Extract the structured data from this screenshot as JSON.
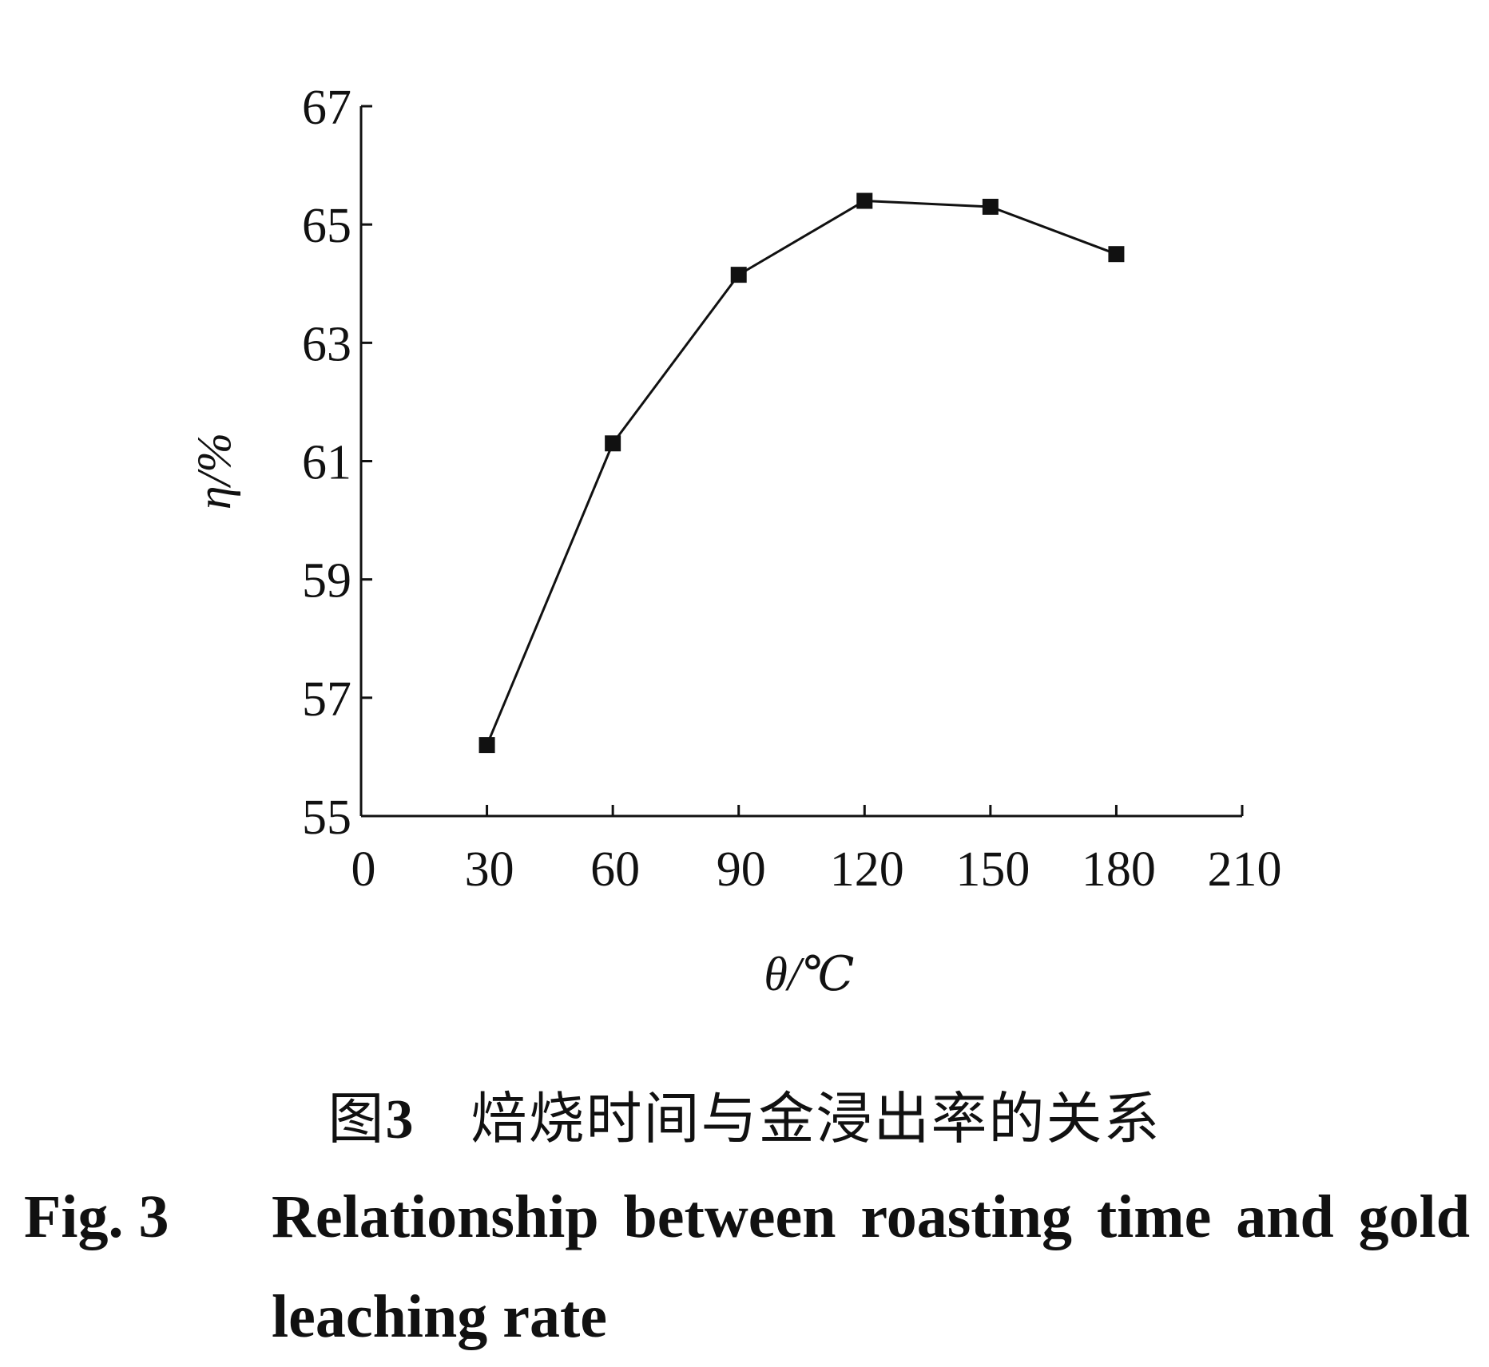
{
  "chart_data": {
    "type": "line",
    "xlabel": "θ/℃",
    "ylabel": "η/%",
    "xlim": [
      0,
      210
    ],
    "ylim": [
      55,
      67
    ],
    "xticks": [
      0,
      30,
      60,
      90,
      120,
      150,
      180,
      210
    ],
    "yticks": [
      55,
      57,
      59,
      61,
      63,
      65,
      67
    ],
    "grid": false,
    "marker": "square",
    "series": [
      {
        "x": [
          30,
          60,
          90,
          120,
          150,
          180
        ],
        "values": [
          56.2,
          61.3,
          64.15,
          65.4,
          65.3,
          64.5
        ]
      }
    ]
  },
  "caption": {
    "cn_label": "图",
    "cn_number": "3",
    "cn_text": "焙烧时间与金浸出率的关系",
    "en_label": "Fig. 3",
    "en_line1": "Relationship between roasting time and gold",
    "en_line2": "leaching rate"
  }
}
